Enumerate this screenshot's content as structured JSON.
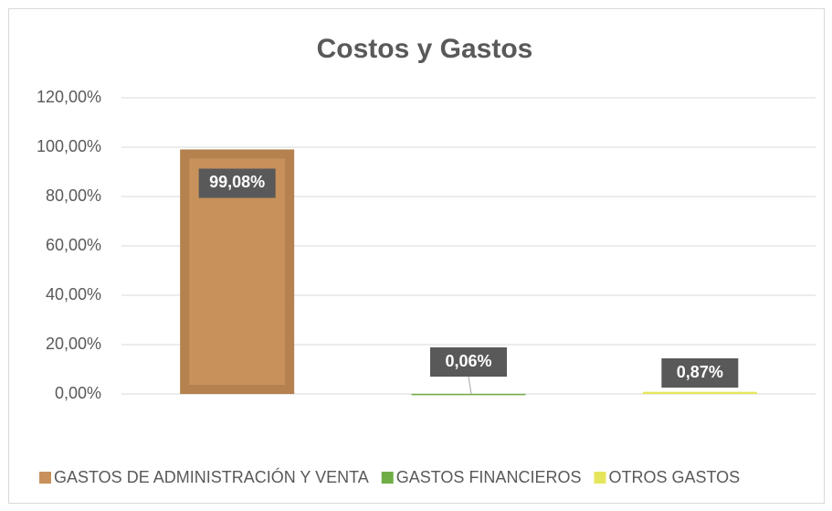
{
  "chart_data": {
    "type": "bar",
    "title": "Costos y Gastos",
    "series": [
      {
        "name": "GASTOS DE ADMINISTRACIÓN Y VENTA",
        "color": "#c8915b",
        "values": [
          99.08
        ],
        "value_labels": [
          "99,08%"
        ]
      },
      {
        "name": "GASTOS FINANCIEROS",
        "color": "#70ad47",
        "values": [
          0.06
        ],
        "value_labels": [
          "0,06%"
        ]
      },
      {
        "name": "OTROS GASTOS",
        "color": "#e6e65c",
        "values": [
          0.87
        ],
        "value_labels": [
          "0,87%"
        ]
      }
    ],
    "ylim": [
      0,
      120
    ],
    "yticks": [
      {
        "value": 0,
        "label": "0,00%"
      },
      {
        "value": 20,
        "label": "20,00%"
      },
      {
        "value": 40,
        "label": "40,00%"
      },
      {
        "value": 60,
        "label": "60,00%"
      },
      {
        "value": 80,
        "label": "80,00%"
      },
      {
        "value": 100,
        "label": "100,00%"
      },
      {
        "value": 120,
        "label": "120,00%"
      }
    ],
    "grid": true,
    "legend": "bottom"
  }
}
